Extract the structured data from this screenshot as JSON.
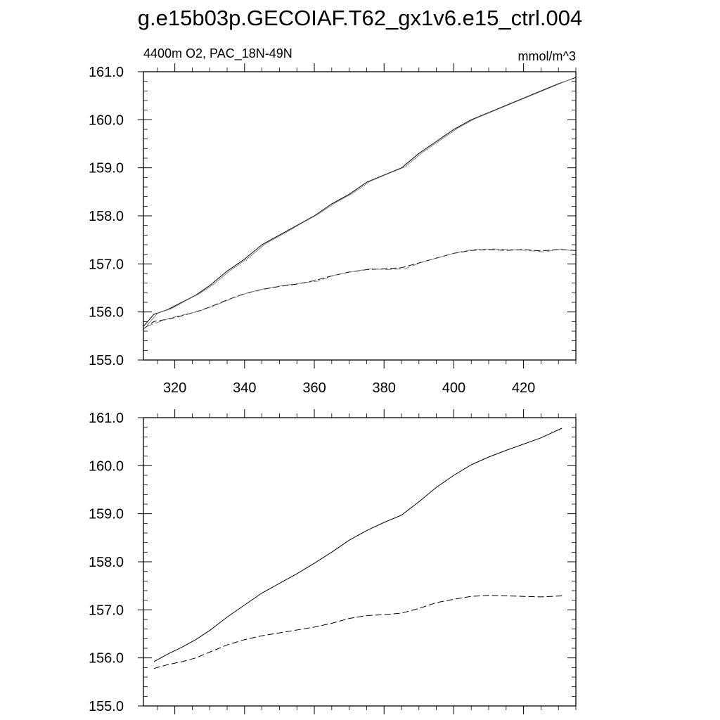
{
  "title": "g.e15b03p.GECOIAF.T62_gx1v6.e15_ctrl.004",
  "chart_data": [
    {
      "type": "line",
      "left_label": "4400m O2, PAC_18N-49N",
      "right_label": "mmol/m^3",
      "xlim": [
        311,
        435
      ],
      "ylim": [
        155.0,
        161.0
      ],
      "x_ticks": [
        320,
        340,
        360,
        380,
        400,
        420
      ],
      "x_tick_labels": [
        "320",
        "340",
        "360",
        "380",
        "400",
        "420"
      ],
      "y_ticks": [
        155.0,
        156.0,
        157.0,
        158.0,
        159.0,
        160.0,
        161.0
      ],
      "y_tick_labels": [
        "155.0",
        "156.0",
        "157.0",
        "158.0",
        "159.0",
        "160.0",
        "161.0"
      ],
      "series": [
        {
          "style": "solid",
          "x": [
            311,
            314,
            318,
            322,
            326,
            330,
            335,
            340,
            345,
            350,
            355,
            360,
            365,
            370,
            375,
            380,
            385,
            390,
            395,
            400,
            405,
            410,
            415,
            420,
            425,
            430,
            435
          ],
          "y": [
            155.7,
            155.95,
            156.05,
            156.2,
            156.35,
            156.55,
            156.85,
            157.1,
            157.4,
            157.6,
            157.8,
            158.0,
            158.25,
            158.45,
            158.7,
            158.85,
            159.0,
            159.3,
            159.55,
            159.8,
            160.0,
            160.15,
            160.3,
            160.45,
            160.6,
            160.75,
            160.88
          ]
        },
        {
          "style": "solid-grey",
          "x": [
            312,
            315,
            319,
            323,
            327,
            331,
            336,
            341,
            346,
            351,
            356,
            361,
            366,
            371,
            376,
            381,
            386,
            391,
            396,
            401,
            406,
            411,
            416,
            421,
            426,
            431,
            434
          ],
          "y": [
            155.72,
            155.97,
            156.07,
            156.23,
            156.38,
            156.57,
            156.87,
            157.12,
            157.42,
            157.62,
            157.83,
            158.03,
            158.27,
            158.47,
            158.72,
            158.87,
            159.02,
            159.32,
            159.57,
            159.82,
            160.02,
            160.17,
            160.32,
            160.47,
            160.62,
            160.77,
            160.86
          ]
        },
        {
          "style": "dashed",
          "x": [
            311,
            314,
            318,
            322,
            326,
            330,
            335,
            340,
            345,
            350,
            355,
            360,
            365,
            370,
            375,
            380,
            385,
            390,
            395,
            400,
            405,
            410,
            415,
            420,
            425,
            430,
            435
          ],
          "y": [
            155.65,
            155.8,
            155.85,
            155.92,
            156.0,
            156.1,
            156.25,
            156.38,
            156.47,
            156.53,
            156.58,
            156.65,
            156.75,
            156.83,
            156.88,
            156.9,
            156.92,
            157.02,
            157.12,
            157.22,
            157.28,
            157.3,
            157.28,
            157.3,
            157.27,
            157.3,
            157.28
          ]
        },
        {
          "style": "dashed-grey",
          "x": [
            312,
            315,
            319,
            323,
            327,
            331,
            336,
            341,
            346,
            351,
            356,
            361,
            366,
            371,
            376,
            381,
            386,
            391,
            396,
            401,
            406,
            411,
            416,
            421,
            426,
            431,
            434
          ],
          "y": [
            155.7,
            155.78,
            155.88,
            155.95,
            156.02,
            156.12,
            156.27,
            156.4,
            156.49,
            156.55,
            156.6,
            156.64,
            156.77,
            156.84,
            156.9,
            156.88,
            156.9,
            157.04,
            157.14,
            157.24,
            157.3,
            157.31,
            157.3,
            157.28,
            157.25,
            157.31,
            157.27
          ]
        }
      ]
    },
    {
      "type": "line",
      "xlim": [
        311,
        435
      ],
      "ylim": [
        155.0,
        161.0
      ],
      "x_ticks": [
        320,
        340,
        360,
        380,
        400,
        420
      ],
      "y_ticks": [
        155.0,
        156.0,
        157.0,
        158.0,
        159.0,
        160.0,
        161.0
      ],
      "y_tick_labels": [
        "155.0",
        "156.0",
        "157.0",
        "158.0",
        "159.0",
        "160.0",
        "161.0"
      ],
      "series": [
        {
          "style": "solid",
          "x": [
            314,
            318,
            322,
            326,
            330,
            335,
            340,
            345,
            350,
            355,
            360,
            365,
            370,
            375,
            380,
            385,
            390,
            395,
            400,
            405,
            410,
            415,
            420,
            425,
            431
          ],
          "y": [
            155.92,
            156.08,
            156.22,
            156.38,
            156.57,
            156.85,
            157.1,
            157.35,
            157.55,
            157.75,
            157.97,
            158.2,
            158.45,
            158.65,
            158.82,
            158.97,
            159.25,
            159.55,
            159.8,
            160.02,
            160.18,
            160.32,
            160.45,
            160.58,
            160.78
          ]
        },
        {
          "style": "dashed",
          "x": [
            314,
            318,
            322,
            326,
            330,
            335,
            340,
            345,
            350,
            355,
            360,
            365,
            370,
            375,
            380,
            385,
            390,
            395,
            400,
            405,
            410,
            415,
            420,
            425,
            431
          ],
          "y": [
            155.78,
            155.86,
            155.92,
            156.0,
            156.12,
            156.27,
            156.38,
            156.46,
            156.52,
            156.58,
            156.64,
            156.72,
            156.82,
            156.88,
            156.9,
            156.93,
            157.03,
            157.15,
            157.22,
            157.28,
            157.3,
            157.29,
            157.28,
            157.27,
            157.29
          ]
        }
      ]
    }
  ]
}
